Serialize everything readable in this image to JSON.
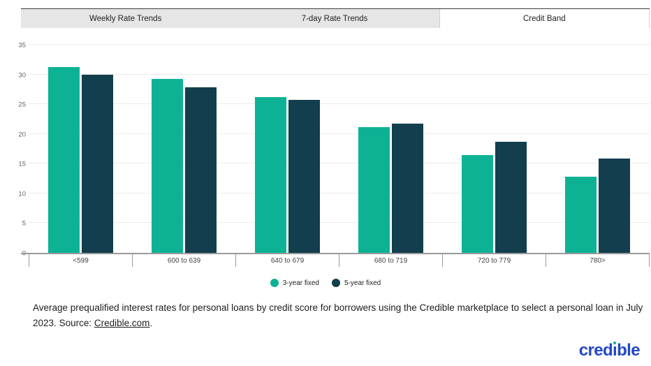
{
  "tabs": [
    {
      "label": "Weekly Rate Trends",
      "active": false
    },
    {
      "label": "7-day Rate Trends",
      "active": false
    },
    {
      "label": "Credit Band",
      "active": true
    }
  ],
  "chart_data": {
    "type": "bar",
    "categories": [
      "<599",
      "600 to 639",
      "640 to 679",
      "680 to 719",
      "720 to 779",
      "780>"
    ],
    "series": [
      {
        "name": "3-year fixed",
        "color": "#0db295",
        "values": [
          31.3,
          29.3,
          26.2,
          21.2,
          16.4,
          12.8
        ]
      },
      {
        "name": "5-year fixed",
        "color": "#123e4d",
        "values": [
          30.0,
          27.8,
          25.7,
          21.7,
          18.7,
          15.9
        ]
      }
    ],
    "ylim": [
      0,
      35
    ],
    "yticks": [
      0,
      5,
      10,
      15,
      20,
      25,
      30,
      35
    ],
    "grid": true,
    "legend_position": "bottom",
    "title": "",
    "xlabel": "",
    "ylabel": ""
  },
  "legend": {
    "items": [
      {
        "label": "3-year fixed",
        "color": "#0db295"
      },
      {
        "label": "5-year fixed",
        "color": "#123e4d"
      }
    ]
  },
  "caption": {
    "text": "Average prequalified interest rates for personal loans by credit score for borrowers using the Credible marketplace to select a personal loan in July 2023.",
    "source_prefix": "Source: ",
    "source_link": "Credible.com",
    "source_suffix": "."
  },
  "logo": {
    "text": "credible",
    "part1": "cred",
    "i_stem": "ı",
    "part2": "ble",
    "color": "#2347c5",
    "dot_color": "#10b28c"
  },
  "colors": {
    "bar_teal": "#0db295",
    "bar_dark": "#123e4d",
    "tab_inactive_bg": "#e6e6e6",
    "tab_active_bg": "#ffffff",
    "axis_line": "#9a9a9a",
    "gridline": "#ececec"
  }
}
